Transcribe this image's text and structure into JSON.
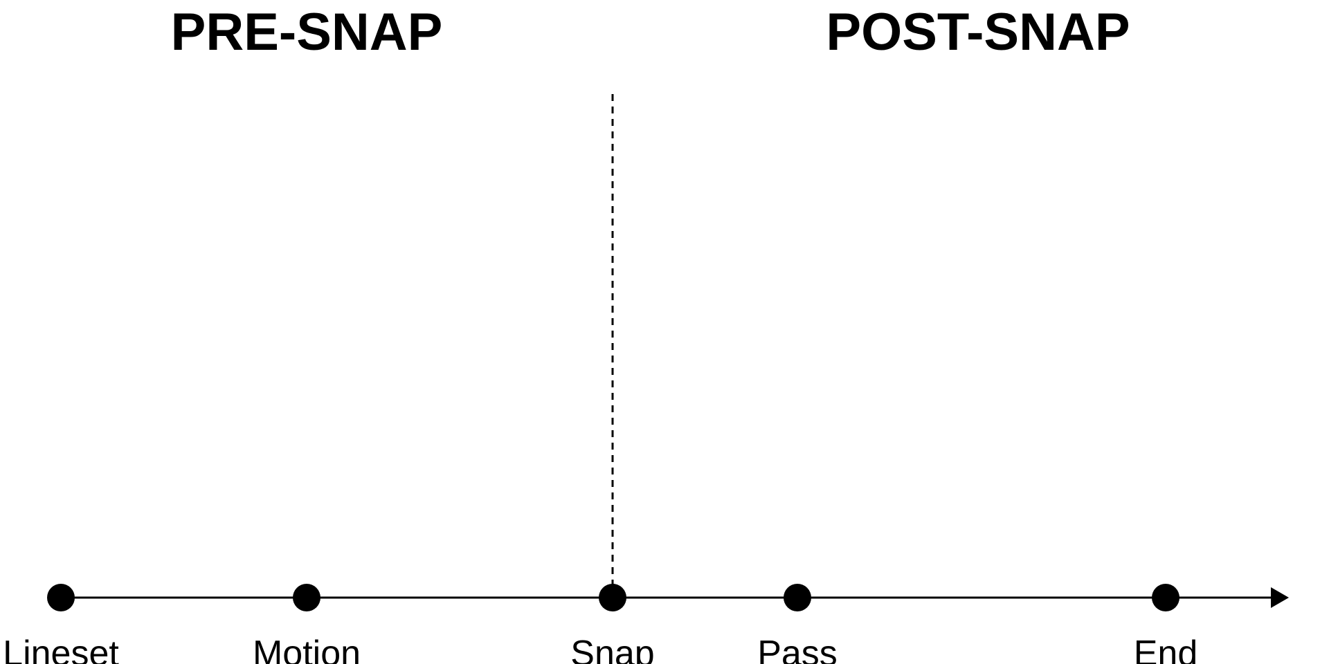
{
  "phases": {
    "pre": "PRE-SNAP",
    "post": "POST-SNAP"
  },
  "events": [
    {
      "key": "lineset",
      "label": "Lineset"
    },
    {
      "key": "motion",
      "label": "Motion"
    },
    {
      "key": "snap",
      "label": "Snap"
    },
    {
      "key": "pass",
      "label": "Pass"
    },
    {
      "key": "end",
      "label": "End"
    }
  ],
  "divider_event": "snap",
  "colors": {
    "ink": "#000000",
    "background": "#ffffff"
  }
}
